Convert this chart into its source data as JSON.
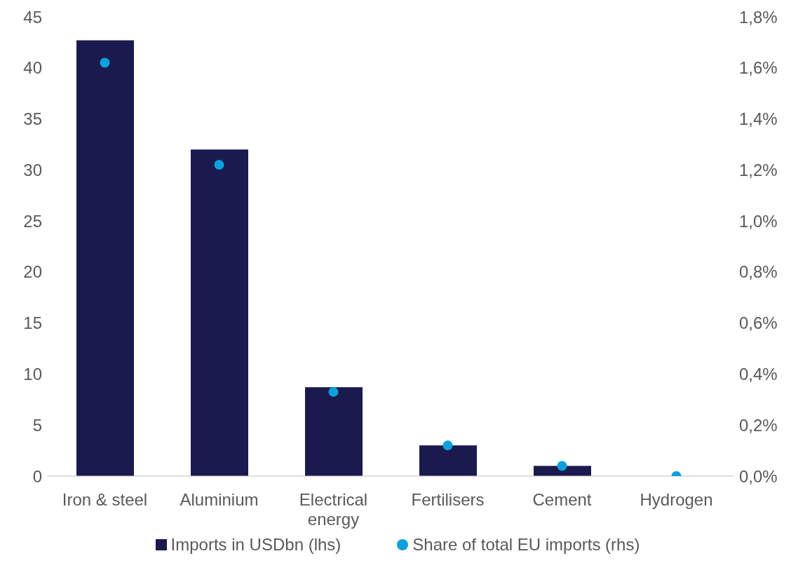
{
  "chart_data": {
    "type": "bar",
    "categories": [
      "Iron & steel",
      "Aluminium",
      "Electrical energy",
      "Fertilisers",
      "Cement",
      "Hydrogen"
    ],
    "series": [
      {
        "name": "Imports in USDbn (lhs)",
        "color": "#1b1a4f",
        "values": [
          42.7,
          32.0,
          8.7,
          3.0,
          1.0,
          0
        ]
      },
      {
        "name": "Share of total EU imports (rhs)",
        "type": "scatter",
        "axis": "y2",
        "color": "#0da0dd",
        "values": [
          1.62,
          1.22,
          0.33,
          0.12,
          0.04,
          0.0
        ]
      }
    ],
    "ylim": [
      0,
      45
    ],
    "yticks": [
      0,
      5,
      10,
      15,
      20,
      25,
      30,
      35,
      40,
      45
    ],
    "y2lim": [
      0,
      1.8
    ],
    "y2ticks": [
      {
        "value": 0,
        "label": "0,0%"
      },
      {
        "value": 0.2,
        "label": "0,2%"
      },
      {
        "value": 0.4,
        "label": "0,4%"
      },
      {
        "value": 0.6,
        "label": "0,6%"
      },
      {
        "value": 0.8,
        "label": "0,8%"
      },
      {
        "value": 1.0,
        "label": "1,0%"
      },
      {
        "value": 1.2,
        "label": "1,2%"
      },
      {
        "value": 1.4,
        "label": "1,4%"
      },
      {
        "value": 1.6,
        "label": "1,6%"
      },
      {
        "value": 1.8,
        "label": "1,8%"
      }
    ],
    "grid": false,
    "legend": "bottom",
    "marker": "circle"
  }
}
